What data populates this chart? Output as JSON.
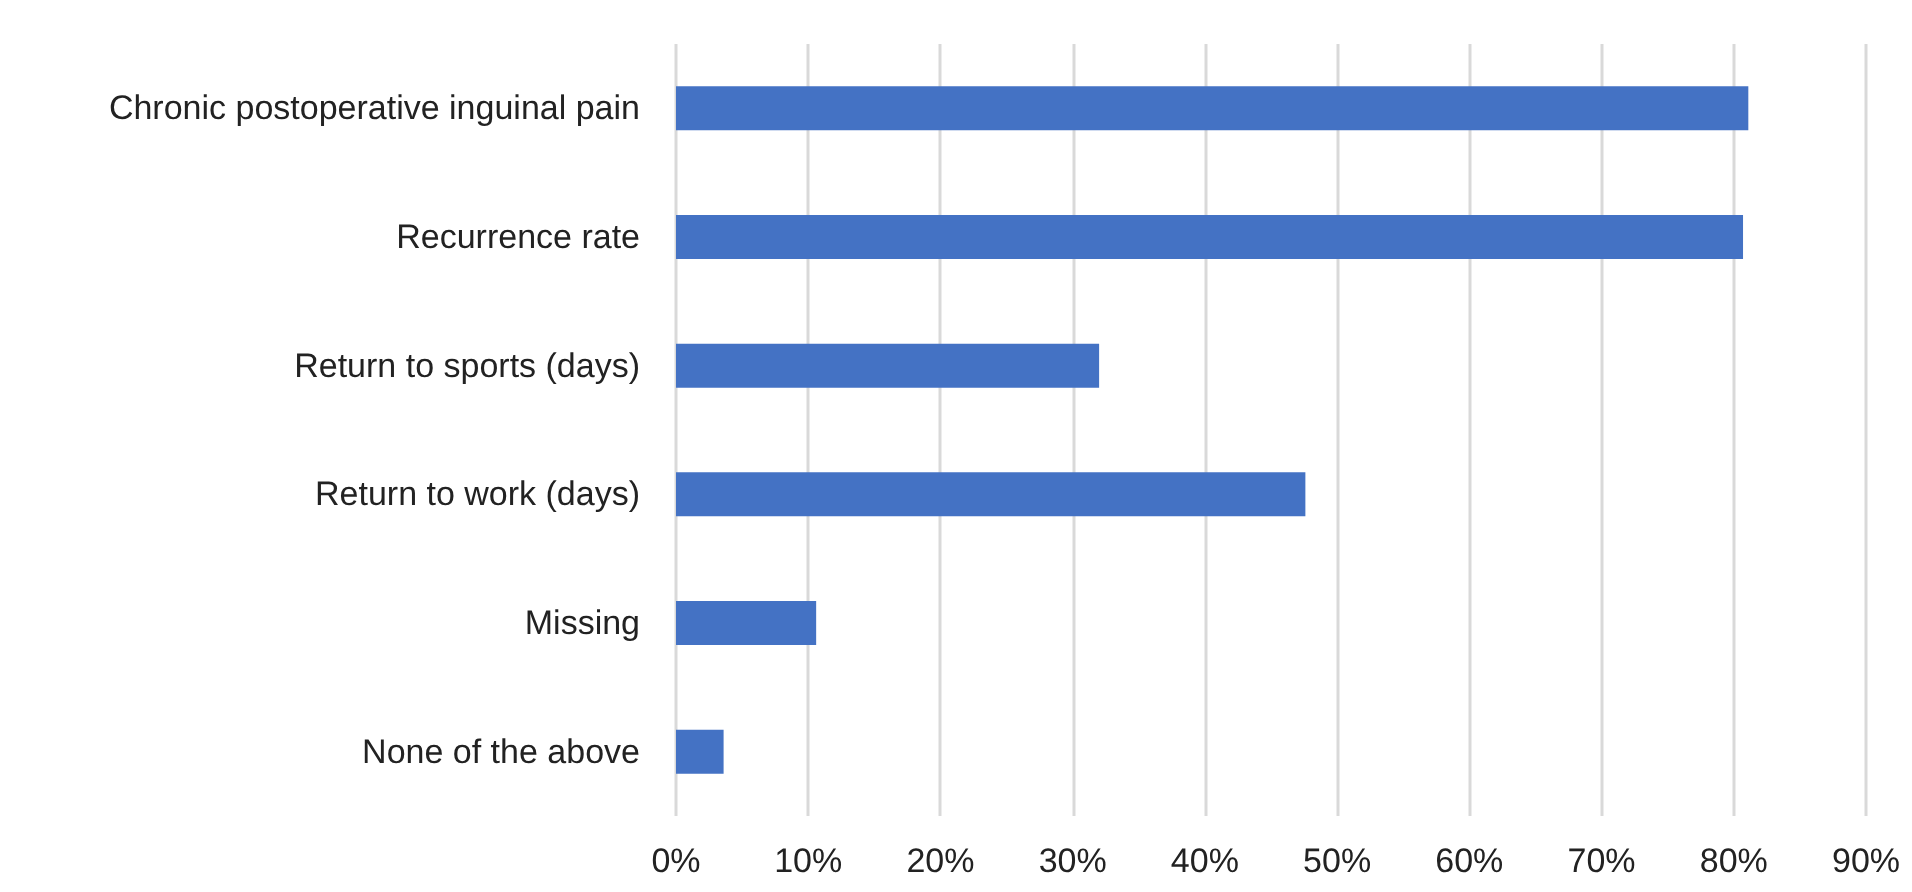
{
  "chart_data": {
    "type": "bar",
    "orientation": "horizontal",
    "categories": [
      "Chronic postoperative inguinal pain",
      "Recurrence rate",
      "Return to sports (days)",
      "Return to work (days)",
      "Missing",
      "None of the above"
    ],
    "values": [
      81.1,
      80.7,
      32.0,
      47.6,
      10.6,
      3.6
    ],
    "color": "#4472c4",
    "xlim": [
      0,
      90
    ],
    "xticks": [
      {
        "value": 0,
        "label": "0%"
      },
      {
        "value": 10,
        "label": "10%"
      },
      {
        "value": 20,
        "label": "20%"
      },
      {
        "value": 30,
        "label": "30%"
      },
      {
        "value": 40,
        "label": "40%"
      },
      {
        "value": 50,
        "label": "50%"
      },
      {
        "value": 60,
        "label": "60%"
      },
      {
        "value": 70,
        "label": "70%"
      },
      {
        "value": 80,
        "label": "80%"
      },
      {
        "value": 90,
        "label": "90%"
      }
    ],
    "grid": "x"
  }
}
